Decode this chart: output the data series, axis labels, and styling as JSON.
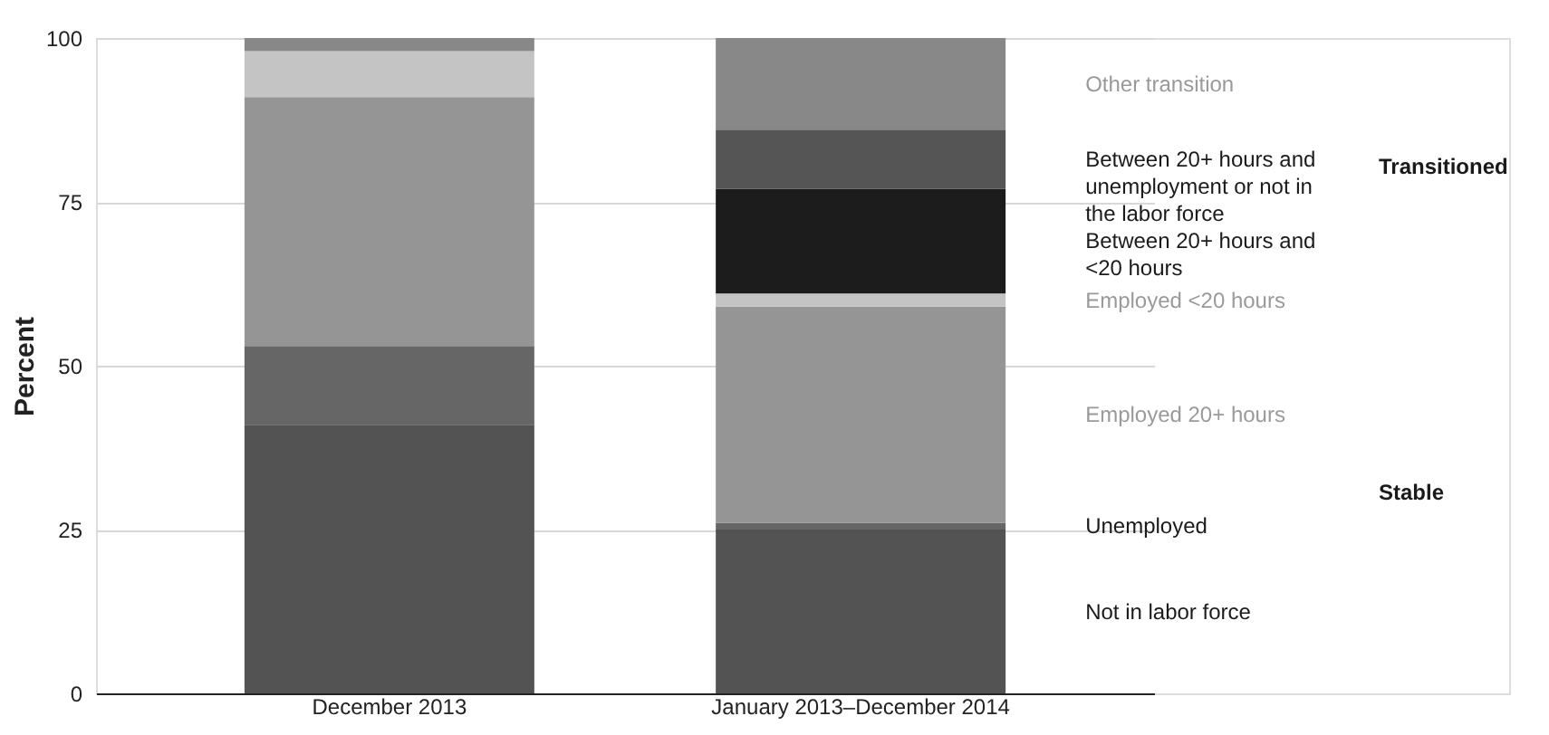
{
  "chart_data": {
    "type": "bar",
    "stacked": true,
    "ylabel": "Percent",
    "categories": [
      "December 2013",
      "January 2013–December 2014"
    ],
    "series": [
      {
        "name": "Not in labor force",
        "color": "#535353",
        "values": [
          41,
          25
        ]
      },
      {
        "name": "Unemployed",
        "color": "#666666",
        "values": [
          12,
          1
        ]
      },
      {
        "name": "Employed 20+ hours",
        "color": "#959595",
        "values": [
          38,
          33
        ]
      },
      {
        "name": "Employed <20 hours",
        "color": "#c4c4c4",
        "values": [
          7,
          2
        ]
      },
      {
        "name": "Between 20+ hours and <20 hours",
        "color": "#1c1c1c",
        "values": [
          0,
          16
        ]
      },
      {
        "name": "Between 20+ hours and unemployment or not in the labor force",
        "color": "#555555",
        "values": [
          0,
          9
        ]
      },
      {
        "name": "Other transition",
        "color": "#888888",
        "values": [
          2,
          14
        ]
      }
    ],
    "annotations": [
      "Transitioned",
      "Stable"
    ],
    "ylim": [
      0,
      100
    ],
    "yticks": [
      0,
      25,
      50,
      75,
      100
    ],
    "grid": "y",
    "legend": false
  }
}
